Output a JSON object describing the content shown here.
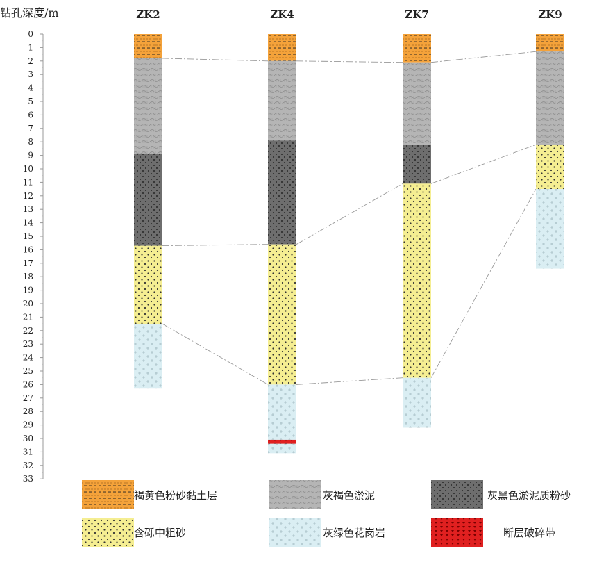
{
  "axis": {
    "title": "钻孔深度/m",
    "min": 0,
    "max": 33,
    "ticks": [
      "0",
      "1",
      "2",
      "3",
      "4",
      "5",
      "6",
      "7",
      "8",
      "9",
      "10",
      "11",
      "12",
      "13",
      "14",
      "15",
      "16",
      "17",
      "18",
      "19",
      "20",
      "21",
      "22",
      "23",
      "24",
      "25",
      "26",
      "27",
      "28",
      "29",
      "30",
      "31",
      "32",
      "33"
    ]
  },
  "lithologies": [
    {
      "key": "silty_clay",
      "label": "褐黄色粉砂黏土层",
      "color": "#f4a23a"
    },
    {
      "key": "mud",
      "label": "灰褐色淤泥",
      "color": "#b5b5b5"
    },
    {
      "key": "silty_mud",
      "label": "灰黑色淤泥质粉砂",
      "color": "#6e6e6e"
    },
    {
      "key": "gravel_sand",
      "label": "含砾中粗砂",
      "color": "#f5ee92"
    },
    {
      "key": "granite",
      "label": "灰绿色花岗岩",
      "color": "#daeef3"
    },
    {
      "key": "fault",
      "label": "断层破碎带",
      "color": "#e02020"
    }
  ],
  "boreholes": [
    {
      "name": "ZK2",
      "layers": [
        {
          "type": "silty_clay",
          "top": 0,
          "bottom": 1.8
        },
        {
          "type": "mud",
          "top": 1.8,
          "bottom": 8.9
        },
        {
          "type": "silty_mud",
          "top": 8.9,
          "bottom": 15.7
        },
        {
          "type": "gravel_sand",
          "top": 15.7,
          "bottom": 21.5
        },
        {
          "type": "granite",
          "top": 21.5,
          "bottom": 26.3
        }
      ]
    },
    {
      "name": "ZK4",
      "layers": [
        {
          "type": "silty_clay",
          "top": 0,
          "bottom": 2.0
        },
        {
          "type": "mud",
          "top": 2.0,
          "bottom": 7.9
        },
        {
          "type": "silty_mud",
          "top": 7.9,
          "bottom": 15.6
        },
        {
          "type": "gravel_sand",
          "top": 15.6,
          "bottom": 26.0
        },
        {
          "type": "granite",
          "top": 26.0,
          "bottom": 30.1
        },
        {
          "type": "fault",
          "top": 30.1,
          "bottom": 30.4
        },
        {
          "type": "granite",
          "top": 30.4,
          "bottom": 31.1
        }
      ]
    },
    {
      "name": "ZK7",
      "layers": [
        {
          "type": "silty_clay",
          "top": 0,
          "bottom": 2.1
        },
        {
          "type": "mud",
          "top": 2.1,
          "bottom": 8.2
        },
        {
          "type": "silty_mud",
          "top": 8.2,
          "bottom": 11.1
        },
        {
          "type": "gravel_sand",
          "top": 11.1,
          "bottom": 25.5
        },
        {
          "type": "granite",
          "top": 25.5,
          "bottom": 29.2
        }
      ]
    },
    {
      "name": "ZK9",
      "layers": [
        {
          "type": "silty_clay",
          "top": 0,
          "bottom": 1.3
        },
        {
          "type": "mud",
          "top": 1.3,
          "bottom": 8.2
        },
        {
          "type": "gravel_sand",
          "top": 8.2,
          "bottom": 11.5
        },
        {
          "type": "granite",
          "top": 11.5,
          "bottom": 17.4
        }
      ]
    }
  ],
  "correlation_lines": [
    {
      "from": "ZK2",
      "to": "ZK4",
      "depth_from": 1.8,
      "depth_to": 2.0
    },
    {
      "from": "ZK4",
      "to": "ZK7",
      "depth_from": 2.0,
      "depth_to": 2.1
    },
    {
      "from": "ZK7",
      "to": "ZK9",
      "depth_from": 2.1,
      "depth_to": 1.3
    },
    {
      "from": "ZK2",
      "to": "ZK4",
      "depth_from": 15.7,
      "depth_to": 15.6
    },
    {
      "from": "ZK4",
      "to": "ZK7",
      "depth_from": 15.6,
      "depth_to": 11.1
    },
    {
      "from": "ZK7",
      "to": "ZK9",
      "depth_from": 11.1,
      "depth_to": 8.2
    },
    {
      "from": "ZK2",
      "to": "ZK4",
      "depth_from": 21.5,
      "depth_to": 26.0
    },
    {
      "from": "ZK4",
      "to": "ZK7",
      "depth_from": 26.0,
      "depth_to": 25.5
    },
    {
      "from": "ZK7",
      "to": "ZK9",
      "depth_from": 25.5,
      "depth_to": 11.5
    }
  ]
}
